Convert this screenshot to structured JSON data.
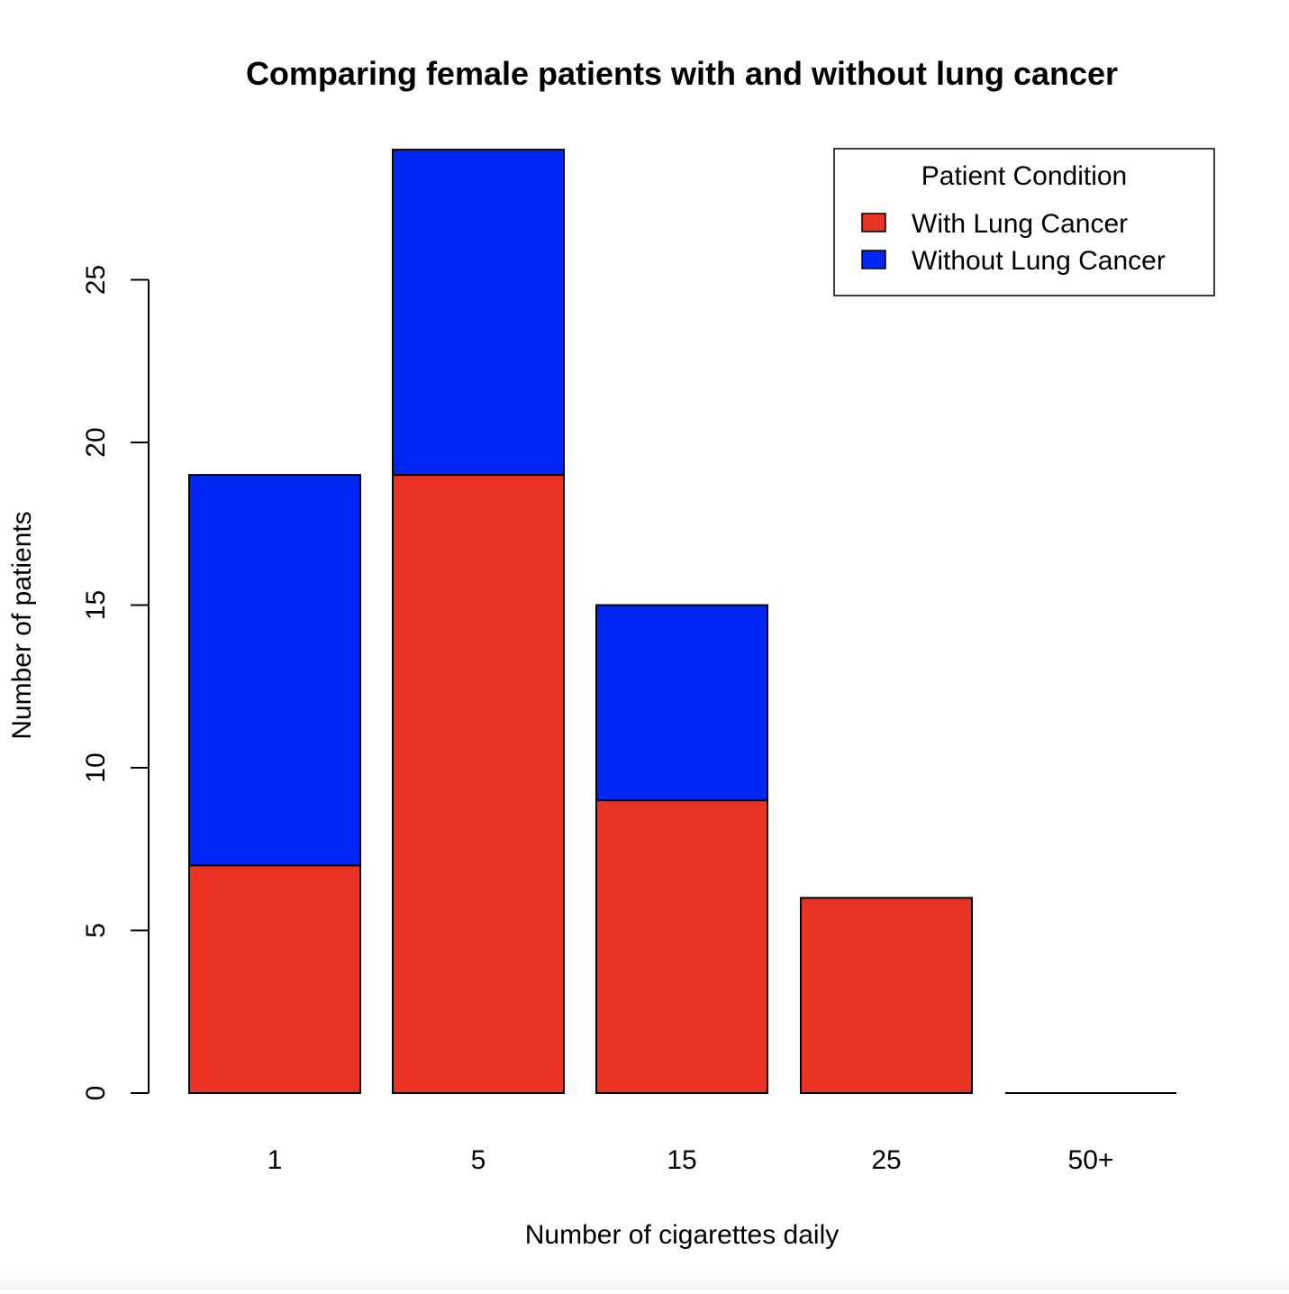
{
  "chart_data": {
    "type": "bar",
    "stacked": true,
    "title": "Comparing female patients with and without lung cancer",
    "xlabel": "Number of cigarettes daily",
    "ylabel": "Number of patients",
    "categories": [
      "1",
      "5",
      "15",
      "25",
      "50+"
    ],
    "series": [
      {
        "name": "With Lung Cancer",
        "values": [
          7,
          19,
          9,
          6,
          0
        ],
        "color": "#ea3323"
      },
      {
        "name": "Without Lung Cancer",
        "values": [
          12,
          10,
          6,
          0,
          0
        ],
        "color": "#0026f5"
      }
    ],
    "ylim": [
      0,
      29
    ],
    "yticks": [
      0,
      5,
      10,
      15,
      20,
      25
    ],
    "grid": false,
    "legend": {
      "title": "Patient Condition",
      "position": "top-right"
    }
  }
}
